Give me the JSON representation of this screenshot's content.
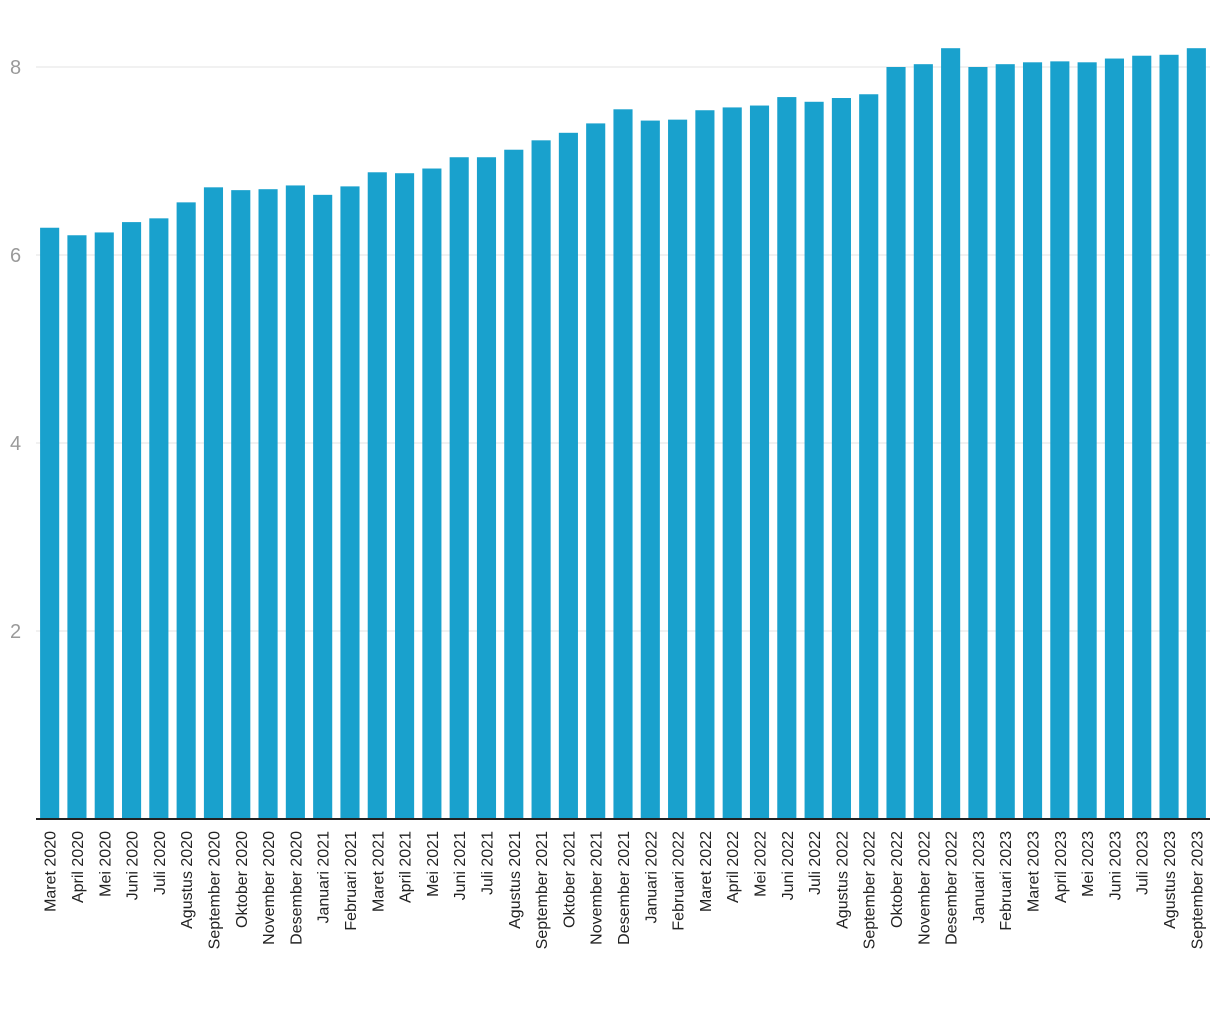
{
  "chart_data": {
    "type": "bar",
    "title": "",
    "xlabel": "",
    "ylabel": "",
    "ylim": [
      0,
      8.2
    ],
    "yticks": [
      2,
      4,
      6,
      8
    ],
    "grid": true,
    "legend": "none",
    "bar_color": "#19a1cd",
    "categories": [
      "Maret 2020",
      "April 2020",
      "Mei 2020",
      "Juni 2020",
      "Juli 2020",
      "Agustus 2020",
      "September 2020",
      "Oktober 2020",
      "November 2020",
      "Desember 2020",
      "Januari 2021",
      "Februari 2021",
      "Maret 2021",
      "April 2021",
      "Mei 2021",
      "Juni 2021",
      "Juli 2021",
      "Agustus 2021",
      "September 2021",
      "Oktober 2021",
      "November 2021",
      "Desember 2021",
      "Januari 2022",
      "Februari 2022",
      "Maret 2022",
      "April 2022",
      "Mei 2022",
      "Juni 2022",
      "Juli 2022",
      "Agustus 2022",
      "September 2022",
      "Oktober 2022",
      "November 2022",
      "Desember 2022",
      "Januari 2023",
      "Februari 2023",
      "Maret 2023",
      "April 2023",
      "Mei 2023",
      "Juni 2023",
      "Juli 2023",
      "Agustus 2023",
      "September 2023"
    ],
    "values": [
      6.29,
      6.21,
      6.24,
      6.35,
      6.39,
      6.56,
      6.72,
      6.69,
      6.7,
      6.74,
      6.64,
      6.73,
      6.88,
      6.87,
      6.92,
      7.04,
      7.04,
      7.12,
      7.22,
      7.3,
      7.4,
      7.55,
      7.43,
      7.44,
      7.54,
      7.57,
      7.59,
      7.68,
      7.63,
      7.67,
      7.71,
      8.0,
      8.03,
      8.2,
      8.0,
      8.03,
      8.05,
      8.06,
      8.05,
      8.09,
      8.12,
      8.13,
      8.2
    ]
  }
}
